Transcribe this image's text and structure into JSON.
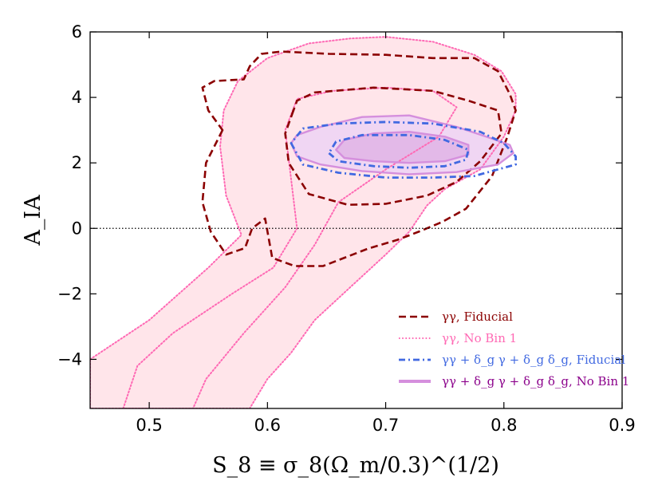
{
  "chart_data": {
    "type": "contour",
    "title": "",
    "xlabel": "S_8 ≡ σ_8(Ω_m/0.3)^(1/2)",
    "ylabel": "A_IA",
    "xlim": [
      0.45,
      0.9
    ],
    "ylim": [
      -5.5,
      6
    ],
    "xticks": [
      0.5,
      0.6,
      0.7,
      0.8,
      0.9
    ],
    "yticks": [
      -4,
      -2,
      0,
      2,
      4,
      6
    ],
    "xtick_labels": [
      "0.5",
      "0.6",
      "0.7",
      "0.8",
      "0.9"
    ],
    "ytick_labels": [
      "−4",
      "−2",
      "0",
      "2",
      "4",
      "6"
    ],
    "hline": 0,
    "legend_position": "bottom-right",
    "series": [
      {
        "name": "γγ, Fiducial",
        "style": "dashed",
        "color": "#8b0000",
        "fill": false,
        "contours": [
          [
            [
              0.562,
              3.0
            ],
            [
              0.548,
              2.0
            ],
            [
              0.545,
              0.8
            ],
            [
              0.552,
              -0.1
            ],
            [
              0.565,
              -0.8
            ],
            [
              0.581,
              -0.6
            ],
            [
              0.587,
              0.0
            ],
            [
              0.598,
              0.3
            ],
            [
              0.604,
              -0.9
            ],
            [
              0.623,
              -1.15
            ],
            [
              0.647,
              -1.15
            ],
            [
              0.685,
              -0.62
            ],
            [
              0.71,
              -0.35
            ],
            [
              0.728,
              -0.1
            ],
            [
              0.748,
              0.2
            ],
            [
              0.768,
              0.6
            ],
            [
              0.79,
              1.6
            ],
            [
              0.803,
              2.8
            ],
            [
              0.81,
              3.6
            ],
            [
              0.805,
              4.1
            ],
            [
              0.795,
              4.8
            ],
            [
              0.775,
              5.2
            ],
            [
              0.74,
              5.2
            ],
            [
              0.7,
              5.3
            ],
            [
              0.652,
              5.33
            ],
            [
              0.612,
              5.4
            ],
            [
              0.595,
              5.33
            ],
            [
              0.585,
              4.95
            ],
            [
              0.58,
              4.55
            ],
            [
              0.555,
              4.5
            ],
            [
              0.545,
              4.3
            ],
            [
              0.55,
              3.6
            ]
          ],
          [
            [
              0.622,
              3.6
            ],
            [
              0.615,
              2.9
            ],
            [
              0.618,
              2.0
            ],
            [
              0.635,
              1.05
            ],
            [
              0.668,
              0.72
            ],
            [
              0.7,
              0.75
            ],
            [
              0.735,
              1.0
            ],
            [
              0.76,
              1.42
            ],
            [
              0.78,
              2.05
            ],
            [
              0.798,
              2.9
            ],
            [
              0.795,
              3.6
            ],
            [
              0.77,
              3.9
            ],
            [
              0.74,
              4.2
            ],
            [
              0.69,
              4.3
            ],
            [
              0.64,
              4.15
            ],
            [
              0.625,
              3.9
            ]
          ]
        ]
      },
      {
        "name": "γγ, No Bin 1",
        "style": "dotted",
        "color": "#ff69b4",
        "fill": true,
        "fill_color": "#ffe5ea",
        "contours": [
          [
            [
              0.45,
              -4.0
            ],
            [
              0.5,
              -2.8
            ],
            [
              0.55,
              -1.2
            ],
            [
              0.578,
              -0.2
            ],
            [
              0.565,
              1.0
            ],
            [
              0.56,
              2.5
            ],
            [
              0.563,
              3.6
            ],
            [
              0.575,
              4.5
            ],
            [
              0.6,
              5.2
            ],
            [
              0.635,
              5.65
            ],
            [
              0.67,
              5.8
            ],
            [
              0.7,
              5.85
            ],
            [
              0.74,
              5.7
            ],
            [
              0.775,
              5.3
            ],
            [
              0.798,
              4.8
            ],
            [
              0.81,
              4.1
            ],
            [
              0.81,
              3.6
            ],
            [
              0.8,
              2.8
            ],
            [
              0.78,
              1.8
            ],
            [
              0.75,
              1.2
            ],
            [
              0.735,
              0.7
            ],
            [
              0.72,
              -0.1
            ],
            [
              0.7,
              -0.8
            ],
            [
              0.67,
              -1.8
            ],
            [
              0.64,
              -2.8
            ],
            [
              0.62,
              -3.8
            ],
            [
              0.6,
              -4.6
            ],
            [
              0.585,
              -5.5
            ],
            [
              0.45,
              -5.5
            ]
          ],
          [
            [
              0.478,
              -5.5
            ],
            [
              0.49,
              -4.2
            ],
            [
              0.52,
              -3.2
            ],
            [
              0.57,
              -2.0
            ],
            [
              0.605,
              -1.2
            ],
            [
              0.625,
              0.0
            ],
            [
              0.62,
              1.5
            ],
            [
              0.615,
              3.0
            ],
            [
              0.625,
              3.95
            ],
            [
              0.655,
              4.2
            ],
            [
              0.7,
              4.3
            ],
            [
              0.74,
              4.2
            ],
            [
              0.76,
              3.7
            ],
            [
              0.745,
              2.8
            ],
            [
              0.7,
              1.8
            ],
            [
              0.66,
              0.8
            ],
            [
              0.64,
              -0.5
            ],
            [
              0.615,
              -1.8
            ],
            [
              0.58,
              -3.2
            ],
            [
              0.548,
              -4.6
            ],
            [
              0.537,
              -5.5
            ]
          ]
        ]
      },
      {
        "name": "γγ + δ_g γ + δ_g δ_g, Fiducial",
        "style": "dashdot",
        "color": "#4169e1",
        "fill": false,
        "contours": [
          [
            [
              0.62,
              2.6
            ],
            [
              0.63,
              1.95
            ],
            [
              0.66,
              1.7
            ],
            [
              0.7,
              1.55
            ],
            [
              0.74,
              1.55
            ],
            [
              0.775,
              1.6
            ],
            [
              0.81,
              1.95
            ],
            [
              0.81,
              2.2
            ],
            [
              0.8,
              2.6
            ],
            [
              0.78,
              2.95
            ],
            [
              0.74,
              3.2
            ],
            [
              0.7,
              3.25
            ],
            [
              0.66,
              3.2
            ],
            [
              0.63,
              3.05
            ]
          ],
          [
            [
              0.652,
              2.3
            ],
            [
              0.66,
              2.05
            ],
            [
              0.69,
              1.9
            ],
            [
              0.72,
              1.85
            ],
            [
              0.75,
              1.9
            ],
            [
              0.768,
              2.1
            ],
            [
              0.77,
              2.4
            ],
            [
              0.75,
              2.7
            ],
            [
              0.72,
              2.85
            ],
            [
              0.68,
              2.85
            ],
            [
              0.658,
              2.65
            ]
          ]
        ]
      },
      {
        "name": "γγ + δ_g γ + δ_g δ_g, No Bin 1",
        "style": "solid",
        "color": "#d58fdd",
        "fill": true,
        "fill_color": "#f0d6f3",
        "inner_fill_color": "#e3b9e8",
        "contours": [
          [
            [
              0.62,
              2.6
            ],
            [
              0.625,
              2.2
            ],
            [
              0.645,
              1.95
            ],
            [
              0.68,
              1.75
            ],
            [
              0.72,
              1.65
            ],
            [
              0.76,
              1.72
            ],
            [
              0.795,
              1.95
            ],
            [
              0.808,
              2.3
            ],
            [
              0.805,
              2.55
            ],
            [
              0.785,
              2.8
            ],
            [
              0.76,
              3.1
            ],
            [
              0.72,
              3.45
            ],
            [
              0.68,
              3.4
            ],
            [
              0.645,
              3.1
            ],
            [
              0.625,
              2.85
            ]
          ],
          [
            [
              0.658,
              2.4
            ],
            [
              0.665,
              2.15
            ],
            [
              0.69,
              2.05
            ],
            [
              0.72,
              2.0
            ],
            [
              0.75,
              2.05
            ],
            [
              0.77,
              2.25
            ],
            [
              0.77,
              2.55
            ],
            [
              0.75,
              2.8
            ],
            [
              0.72,
              2.95
            ],
            [
              0.69,
              2.9
            ],
            [
              0.665,
              2.7
            ]
          ]
        ]
      }
    ]
  }
}
